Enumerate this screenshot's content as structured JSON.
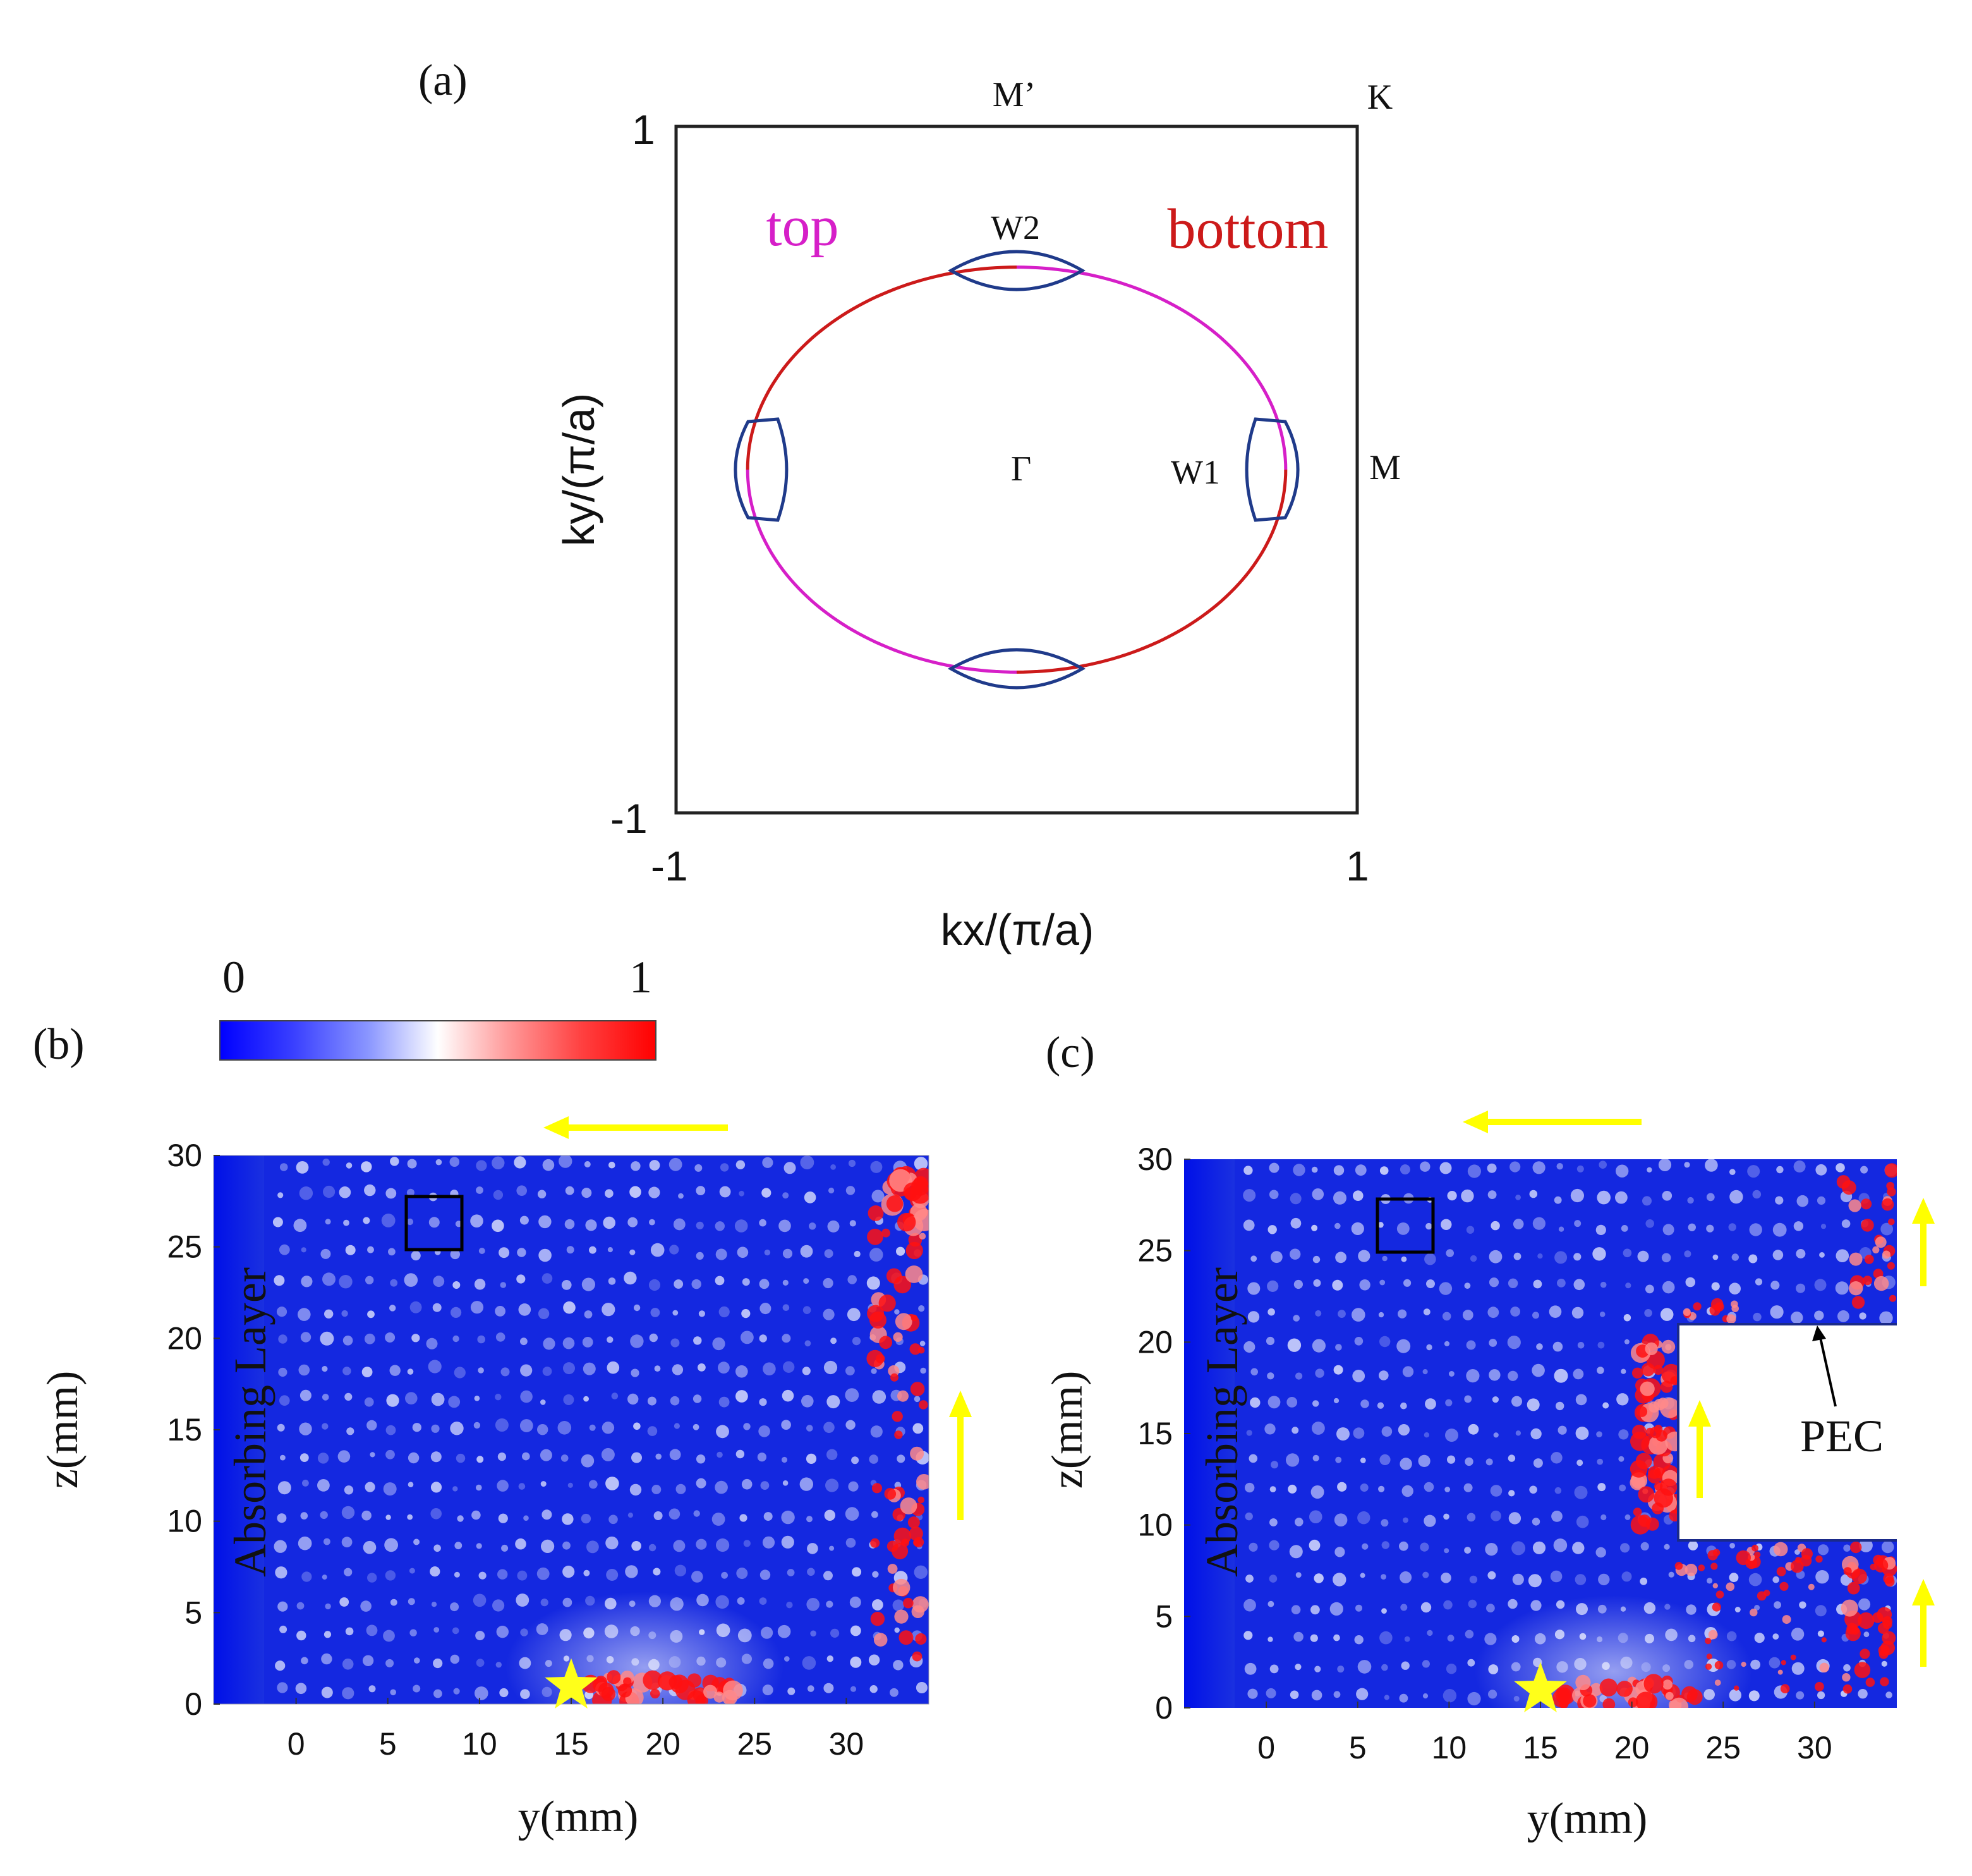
{
  "panels": {
    "a": {
      "label": "(a)"
    },
    "b": {
      "label": "(b)"
    },
    "c": {
      "label": "(c)"
    }
  },
  "colorbar": {
    "min_label": "0",
    "max_label": "1",
    "stops": [
      "#0000ff",
      "#3a40ff",
      "#8a96ff",
      "#ffffff",
      "#ff9a9a",
      "#ff4040",
      "#ff0000"
    ]
  },
  "colors": {
    "top_arc": "#d61fc8",
    "bottom_arc": "#cc1a1a",
    "pocket": "#1f3a8a",
    "arrow": "#ffff00",
    "star": "#ffff1a",
    "field_base": "#1428e0"
  },
  "chart_data": [
    {
      "type": "line",
      "panel": "(a)",
      "xlabel": "kx/(π/a)",
      "ylabel": "ky/(π/a)",
      "xlim": [
        -1,
        1
      ],
      "ylim": [
        -1,
        1
      ],
      "xticks": [
        "-1",
        "1"
      ],
      "yticks": [
        "-1",
        "1"
      ],
      "point_labels": {
        "M_prime": "M’",
        "K": "K",
        "M": "M",
        "Gamma": "Γ",
        "W1": "W1",
        "W2": "W2"
      },
      "series": [
        {
          "name": "top",
          "color": "#d61fc8",
          "shape": "ellipse arc, upper-right and lower-left quadrants",
          "center": [
            0,
            0
          ],
          "radius_x": 0.79,
          "radius_y": 0.59
        },
        {
          "name": "bottom",
          "color": "#cc1a1a",
          "shape": "ellipse arc, upper-left and lower-right quadrants",
          "center": [
            0,
            0
          ],
          "radius_x": 0.79,
          "radius_y": 0.59
        }
      ],
      "pockets": [
        {
          "name": "W2",
          "center": [
            0,
            0.58
          ]
        },
        {
          "name": "W2 (bottom)",
          "center": [
            0,
            -0.58
          ]
        },
        {
          "name": "W1",
          "center": [
            0.72,
            0
          ]
        },
        {
          "name": "W1 (left)",
          "center": [
            -0.72,
            0
          ]
        }
      ]
    },
    {
      "type": "heatmap",
      "panel": "(b)",
      "xlabel": "y(mm)",
      "ylabel": "z(mm)",
      "xticks": [
        0,
        5,
        10,
        15,
        20,
        25,
        30
      ],
      "yticks": [
        0,
        5,
        10,
        15,
        20,
        25,
        30
      ],
      "xlim": [
        -4.5,
        34.5
      ],
      "ylim": [
        0,
        30
      ],
      "color_range": [
        0,
        1
      ],
      "annotation": "Absorbing Layer",
      "source_position": [
        15,
        0.5
      ],
      "unit_cell_box": {
        "y": [
          6,
          9
        ],
        "z": [
          25,
          28
        ]
      },
      "hot_edges": [
        "right edge y≈31–34",
        "bottom edge near source y≈15–24"
      ]
    },
    {
      "type": "heatmap",
      "panel": "(c)",
      "xlabel": "y(mm)",
      "ylabel": "z(mm)",
      "xticks": [
        0,
        5,
        10,
        15,
        20,
        25,
        30
      ],
      "yticks": [
        0,
        5,
        10,
        15,
        20,
        25,
        30
      ],
      "xlim": [
        -4.5,
        34.5
      ],
      "ylim": [
        0,
        30
      ],
      "color_range": [
        0,
        1
      ],
      "annotation": "Absorbing Layer",
      "obstacle_label": "PEC",
      "obstacle": {
        "y": [
          22.5,
          34.5
        ],
        "z": [
          9,
          21
        ]
      },
      "source_position": [
        15,
        0.5
      ],
      "unit_cell_box": {
        "y": [
          6,
          9
        ],
        "z": [
          25,
          28
        ]
      },
      "hot_edges": [
        "PEC left boundary y≈20–22",
        "PEC top/bottom boundaries",
        "right edge y≈31–34",
        "bottom edge near source"
      ]
    }
  ]
}
